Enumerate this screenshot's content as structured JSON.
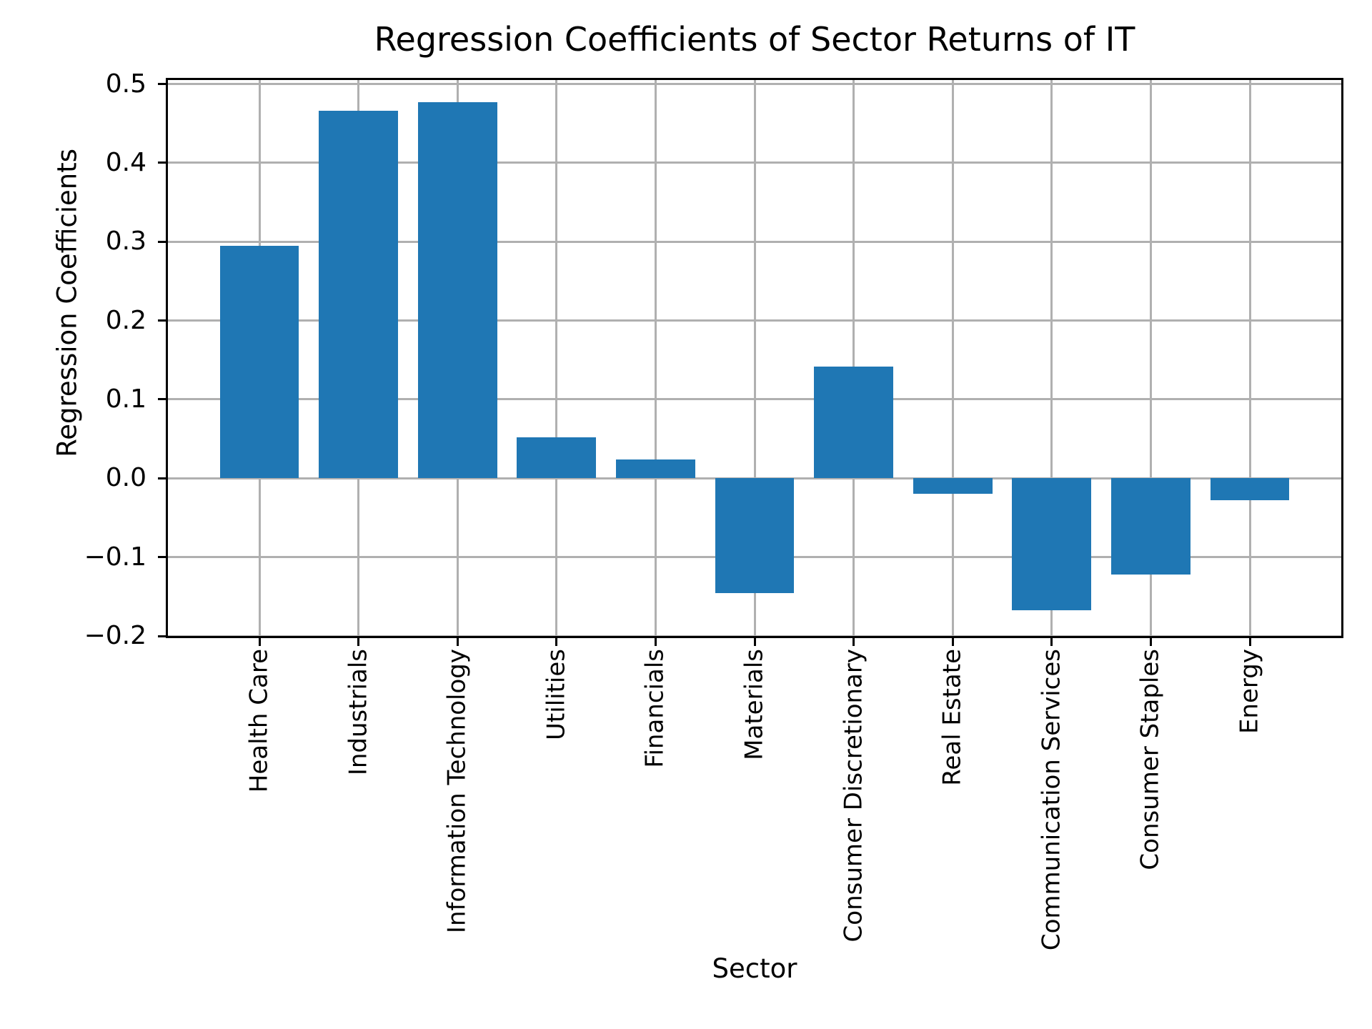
{
  "figure": {
    "background_color": "#ffffff",
    "text_color": "#000000"
  },
  "chart_data": {
    "type": "bar",
    "title": "Regression Coefficients of Sector Returns of IT",
    "xlabel": "Sector",
    "ylabel": "Regression Coefficients",
    "categories": [
      "Health Care",
      "Industrials",
      "Information Technology",
      "Utilities",
      "Financials",
      "Materials",
      "Consumer Discretionary",
      "Real Estate",
      "Communication Services",
      "Consumer Staples",
      "Energy"
    ],
    "values": [
      0.295,
      0.466,
      0.477,
      0.052,
      0.024,
      -0.146,
      0.142,
      -0.02,
      -0.167,
      -0.122,
      -0.028
    ],
    "bar_color": "#1f77b4",
    "grid": true,
    "grid_color": "#b0b0b0",
    "spine_color": "#000000",
    "ylim": [
      -0.2,
      0.505
    ],
    "yticks": [
      0.5,
      0.4,
      0.3,
      0.2,
      0.1,
      0.0,
      -0.1,
      -0.2
    ],
    "ytick_labels": [
      "0.5",
      "0.4",
      "0.3",
      "0.2",
      "0.1",
      "0.0",
      "−0.1",
      "−0.2"
    ],
    "xtick_label_rotation": 90,
    "legend": false
  }
}
